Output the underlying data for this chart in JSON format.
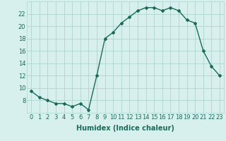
{
  "x": [
    0,
    1,
    2,
    3,
    4,
    5,
    6,
    7,
    8,
    9,
    10,
    11,
    12,
    13,
    14,
    15,
    16,
    17,
    18,
    19,
    20,
    21,
    22,
    23
  ],
  "y": [
    9.5,
    8.5,
    8.0,
    7.5,
    7.5,
    7.0,
    7.5,
    6.5,
    12.0,
    18.0,
    19.0,
    20.5,
    21.5,
    22.5,
    23.0,
    23.0,
    22.5,
    23.0,
    22.5,
    21.0,
    20.5,
    16.0,
    13.5,
    12.0
  ],
  "line_color": "#1a6b5a",
  "marker": "D",
  "marker_size": 2.0,
  "line_width": 1.0,
  "xlabel": "Humidex (Indice chaleur)",
  "xlim": [
    -0.5,
    23.5
  ],
  "ylim": [
    6,
    24
  ],
  "yticks": [
    8,
    10,
    12,
    14,
    16,
    18,
    20,
    22
  ],
  "xticks": [
    0,
    1,
    2,
    3,
    4,
    5,
    6,
    7,
    8,
    9,
    10,
    11,
    12,
    13,
    14,
    15,
    16,
    17,
    18,
    19,
    20,
    21,
    22,
    23
  ],
  "bg_color": "#d7efed",
  "grid_color": "#aed4cf",
  "tick_label_fontsize": 6.0,
  "xlabel_fontsize": 7.0
}
